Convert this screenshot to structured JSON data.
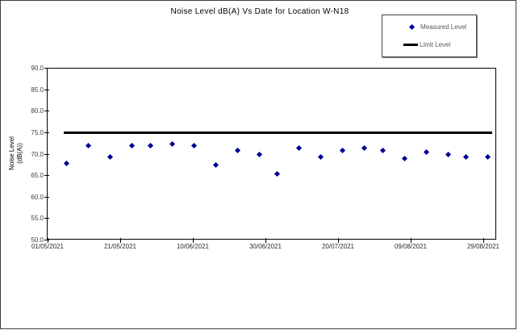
{
  "window": {
    "background": "#ffffff",
    "frame_border_color": "#3f3f3f"
  },
  "legend": {
    "position": "top-right",
    "border_color": "#404040"
  },
  "chart_data": {
    "type": "scatter",
    "title": "Noise Level dB(A) Vs Date for Location W-N18",
    "xlabel": "",
    "ylabel_line1": "Noise Level",
    "ylabel_line2": "(dB(A))",
    "ylim": [
      50,
      90
    ],
    "grid": false,
    "legend_position": "top-right",
    "y_ticks": [
      "90.0",
      "85.0",
      "80.0",
      "75.0",
      "70.0",
      "65.0",
      "60.0",
      "55.0",
      "50.0"
    ],
    "x_ticks": [
      "01/05/2021",
      "21/05/2021",
      "10/06/2021",
      "30/06/2021",
      "20/07/2021",
      "09/08/2021",
      "29/08/2021"
    ],
    "series": [
      {
        "name": "Measured Level",
        "marker": "diamond",
        "color": "#000099",
        "points": [
          {
            "date": "06/05/2021",
            "value": 68.0
          },
          {
            "date": "12/05/2021",
            "value": 72.0
          },
          {
            "date": "18/05/2021",
            "value": 69.5
          },
          {
            "date": "24/05/2021",
            "value": 72.0
          },
          {
            "date": "29/05/2021",
            "value": 72.0
          },
          {
            "date": "04/06/2021",
            "value": 72.5
          },
          {
            "date": "10/06/2021",
            "value": 72.0
          },
          {
            "date": "16/06/2021",
            "value": 67.5
          },
          {
            "date": "22/06/2021",
            "value": 71.0
          },
          {
            "date": "28/06/2021",
            "value": 70.0
          },
          {
            "date": "03/07/2021",
            "value": 65.5
          },
          {
            "date": "09/07/2021",
            "value": 71.5
          },
          {
            "date": "15/07/2021",
            "value": 69.5
          },
          {
            "date": "21/07/2021",
            "value": 71.0
          },
          {
            "date": "27/07/2021",
            "value": 71.5
          },
          {
            "date": "01/08/2021",
            "value": 71.0
          },
          {
            "date": "07/08/2021",
            "value": 69.0
          },
          {
            "date": "13/08/2021",
            "value": 70.5
          },
          {
            "date": "19/08/2021",
            "value": 70.0
          },
          {
            "date": "24/08/2021",
            "value": 69.5
          },
          {
            "date": "30/08/2021",
            "value": 69.5
          }
        ]
      }
    ],
    "limit": {
      "name": "Limit Level",
      "value": 75,
      "color": "#000000"
    }
  }
}
